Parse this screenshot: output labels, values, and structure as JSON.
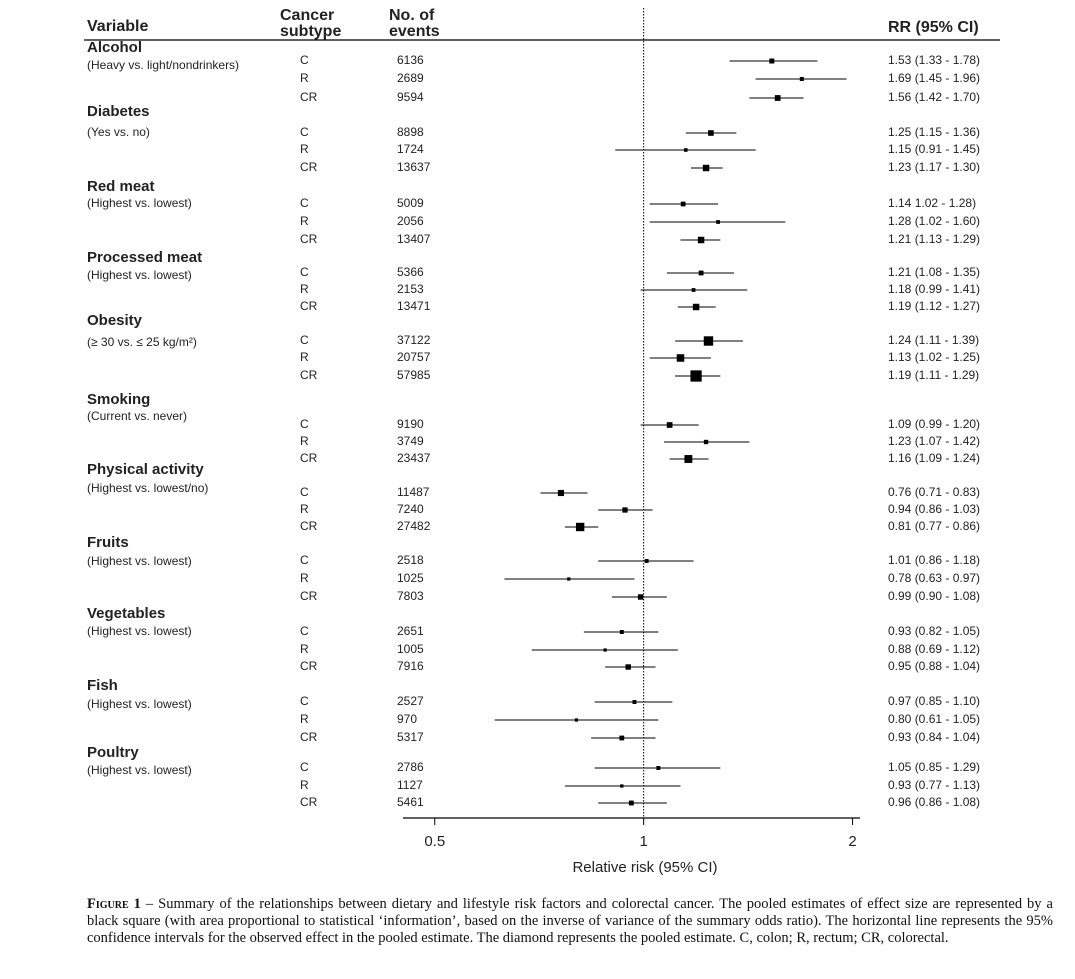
{
  "chart_data": {
    "type": "forest",
    "headers": {
      "variable": "Variable",
      "subtype": [
        "Cancer",
        "subtype"
      ],
      "events": [
        "No. of",
        "events"
      ],
      "rr": "RR (95% CI)"
    },
    "x_label": "Relative risk (95% CI)",
    "log_x": true,
    "xlim": [
      0.45,
      2.05
    ],
    "xticks": [
      0.5,
      1,
      2
    ],
    "reference": 1,
    "color": "#000000",
    "groups": [
      {
        "name": "Alcohol",
        "comparison": "(Heavy vs. light/nondrinkers)",
        "rows": [
          {
            "subtype": "C",
            "events": 6136,
            "values": [
              1.53,
              1.33,
              1.78
            ],
            "value_label": "1.53 (1.33 - 1.78)"
          },
          {
            "subtype": "R",
            "events": 2689,
            "values": [
              1.69,
              1.45,
              1.96
            ],
            "value_label": "1.69 (1.45 - 1.96)"
          },
          {
            "subtype": "CR",
            "events": 9594,
            "values": [
              1.56,
              1.42,
              1.7
            ],
            "value_label": "1.56 (1.42 - 1.70)"
          }
        ]
      },
      {
        "name": "Diabetes",
        "comparison": "(Yes vs. no)",
        "rows": [
          {
            "subtype": "C",
            "events": 8898,
            "values": [
              1.25,
              1.15,
              1.36
            ],
            "value_label": "1.25 (1.15 - 1.36)"
          },
          {
            "subtype": "R",
            "events": 1724,
            "values": [
              1.15,
              0.91,
              1.45
            ],
            "value_label": "1.15 (0.91 - 1.45)"
          },
          {
            "subtype": "CR",
            "events": 13637,
            "values": [
              1.23,
              1.17,
              1.3
            ],
            "value_label": "1.23 (1.17 - 1.30)"
          }
        ]
      },
      {
        "name": "Red meat",
        "comparison": "(Highest vs. lowest)",
        "rows": [
          {
            "subtype": "C",
            "events": 5009,
            "values": [
              1.14,
              1.02,
              1.28
            ],
            "value_label": "1.14 1.02 - 1.28)"
          },
          {
            "subtype": "R",
            "events": 2056,
            "values": [
              1.28,
              1.02,
              1.6
            ],
            "value_label": "1.28 (1.02 - 1.60)"
          },
          {
            "subtype": "CR",
            "events": 13407,
            "values": [
              1.21,
              1.13,
              1.29
            ],
            "value_label": "1.21 (1.13 - 1.29)"
          }
        ]
      },
      {
        "name": "Processed meat",
        "comparison": "(Highest vs. lowest)",
        "rows": [
          {
            "subtype": "C",
            "events": 5366,
            "values": [
              1.21,
              1.08,
              1.35
            ],
            "value_label": "1.21 (1.08 - 1.35)"
          },
          {
            "subtype": "R",
            "events": 2153,
            "values": [
              1.18,
              0.99,
              1.41
            ],
            "value_label": "1.18 (0.99 - 1.41)"
          },
          {
            "subtype": "CR",
            "events": 13471,
            "values": [
              1.19,
              1.12,
              1.27
            ],
            "value_label": "1.19 (1.12 - 1.27)"
          }
        ]
      },
      {
        "name": "Obesity",
        "comparison": "(≥ 30 vs. ≤ 25 kg/m²)",
        "rows": [
          {
            "subtype": "C",
            "events": 37122,
            "values": [
              1.24,
              1.11,
              1.39
            ],
            "value_label": "1.24 (1.11 - 1.39)"
          },
          {
            "subtype": "R",
            "events": 20757,
            "values": [
              1.13,
              1.02,
              1.25
            ],
            "value_label": "1.13 (1.02 - 1.25)"
          },
          {
            "subtype": "CR",
            "events": 57985,
            "values": [
              1.19,
              1.11,
              1.29
            ],
            "value_label": "1.19 (1.11 - 1.29)"
          }
        ]
      },
      {
        "name": "Smoking",
        "comparison": "(Current vs. never)",
        "rows": [
          {
            "subtype": "C",
            "events": 9190,
            "values": [
              1.09,
              0.99,
              1.2
            ],
            "value_label": "1.09 (0.99 - 1.20)"
          },
          {
            "subtype": "R",
            "events": 3749,
            "values": [
              1.23,
              1.07,
              1.42
            ],
            "value_label": "1.23 (1.07 - 1.42)"
          },
          {
            "subtype": "CR",
            "events": 23437,
            "values": [
              1.16,
              1.09,
              1.24
            ],
            "value_label": "1.16 (1.09 - 1.24)"
          }
        ]
      },
      {
        "name": "Physical activity",
        "comparison": "(Highest vs. lowest/no)",
        "rows": [
          {
            "subtype": "C",
            "events": 11487,
            "values": [
              0.76,
              0.71,
              0.83
            ],
            "value_label": "0.76 (0.71 - 0.83)"
          },
          {
            "subtype": "R",
            "events": 7240,
            "values": [
              0.94,
              0.86,
              1.03
            ],
            "value_label": "0.94 (0.86 - 1.03)"
          },
          {
            "subtype": "CR",
            "events": 27482,
            "values": [
              0.81,
              0.77,
              0.86
            ],
            "value_label": "0.81 (0.77 - 0.86)"
          }
        ]
      },
      {
        "name": "Fruits",
        "comparison": "(Highest vs. lowest)",
        "rows": [
          {
            "subtype": "C",
            "events": 2518,
            "values": [
              1.01,
              0.86,
              1.18
            ],
            "value_label": "1.01 (0.86 - 1.18)"
          },
          {
            "subtype": "R",
            "events": 1025,
            "values": [
              0.78,
              0.63,
              0.97
            ],
            "value_label": "0.78 (0.63 - 0.97)"
          },
          {
            "subtype": "CR",
            "events": 7803,
            "values": [
              0.99,
              0.9,
              1.08
            ],
            "value_label": "0.99 (0.90 - 1.08)"
          }
        ]
      },
      {
        "name": "Vegetables",
        "comparison": "(Highest vs. lowest)",
        "rows": [
          {
            "subtype": "C",
            "events": 2651,
            "values": [
              0.93,
              0.82,
              1.05
            ],
            "value_label": "0.93 (0.82 - 1.05)"
          },
          {
            "subtype": "R",
            "events": 1005,
            "values": [
              0.88,
              0.69,
              1.12
            ],
            "value_label": "0.88 (0.69 - 1.12)"
          },
          {
            "subtype": "CR",
            "events": 7916,
            "values": [
              0.95,
              0.88,
              1.04
            ],
            "value_label": "0.95 (0.88 - 1.04)"
          }
        ]
      },
      {
        "name": "Fish",
        "comparison": "(Highest vs. lowest)",
        "rows": [
          {
            "subtype": "C",
            "events": 2527,
            "values": [
              0.97,
              0.85,
              1.1
            ],
            "value_label": "0.97 (0.85 - 1.10)"
          },
          {
            "subtype": "R",
            "events": 970,
            "values": [
              0.8,
              0.61,
              1.05
            ],
            "value_label": "0.80 (0.61 - 1.05)"
          },
          {
            "subtype": "CR",
            "events": 5317,
            "values": [
              0.93,
              0.84,
              1.04
            ],
            "value_label": "0.93 (0.84 - 1.04)"
          }
        ]
      },
      {
        "name": "Poultry",
        "comparison": "(Highest vs. lowest)",
        "rows": [
          {
            "subtype": "C",
            "events": 2786,
            "values": [
              1.05,
              0.85,
              1.29
            ],
            "value_label": "1.05 (0.85 - 1.29)"
          },
          {
            "subtype": "R",
            "events": 1127,
            "values": [
              0.93,
              0.77,
              1.13
            ],
            "value_label": "0.93 (0.77 - 1.13)"
          },
          {
            "subtype": "CR",
            "events": 5461,
            "values": [
              0.96,
              0.86,
              1.08
            ],
            "value_label": "0.96 (0.86 - 1.08)"
          }
        ]
      }
    ]
  },
  "caption": {
    "label": "Figure 1",
    "text": "– Summary of the relationships between dietary and lifestyle risk factors and colorectal cancer. The pooled estimates of effect size are represented by a black square (with area proportional to statistical ‘information’, based on the inverse of variance of the summary odds ratio). The horizontal line represents the 95% confidence intervals for the observed effect in the pooled estimate. The diamond represents the pooled estimate. C, colon; R, rectum; CR, colorectal."
  }
}
